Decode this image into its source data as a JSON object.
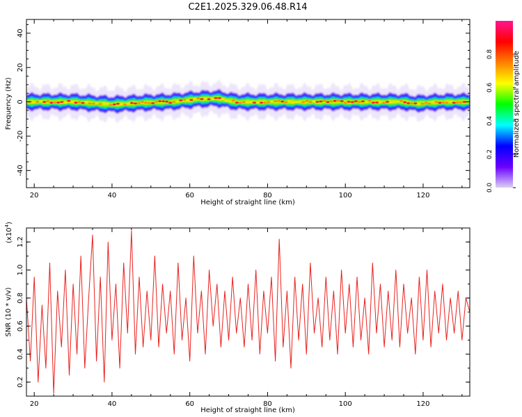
{
  "title": "C2E1.2025.329.06.48.R14",
  "chart_data": [
    {
      "type": "heatmap",
      "xlabel": "Height of straight line (km)",
      "ylabel": "Frequency (Hz)",
      "xlim": [
        18,
        132
      ],
      "ylim": [
        -50,
        48
      ],
      "xticks": [
        20,
        40,
        60,
        80,
        100,
        120
      ],
      "yticks": [
        -40,
        -20,
        0,
        20,
        40
      ],
      "band": {
        "center_hz": [
          [
            18,
            0
          ],
          [
            30,
            0
          ],
          [
            40,
            -1.5
          ],
          [
            48,
            -0.5
          ],
          [
            55,
            0
          ],
          [
            62,
            1.5
          ],
          [
            67,
            2
          ],
          [
            72,
            0
          ],
          [
            85,
            0
          ],
          [
            100,
            0
          ],
          [
            115,
            0
          ],
          [
            118,
            -1
          ],
          [
            125,
            0
          ],
          [
            132,
            0
          ]
        ],
        "core_halfwidth_hz": 1.2,
        "full_halfwidth_hz": 4,
        "scatter_halfwidth_hz": 9
      },
      "colorbar": {
        "label": "Normalized spectral amplitude",
        "range": [
          0,
          1
        ],
        "ticks": [
          "0.0",
          "0.2",
          "0.4",
          "0.6",
          "0.8"
        ],
        "colormap": [
          "#dcd0f5",
          "#6a00ff",
          "#0000ff",
          "#00ffff",
          "#00ff00",
          "#ffff00",
          "#ff8000",
          "#ff0000",
          "#ff1493"
        ]
      }
    },
    {
      "type": "line",
      "xlabel": "Height of straight line (km)",
      "ylabel": "SNR (10 * v/v)",
      "multiplier_label": "(x10",
      "multiplier_exp": "4",
      "xlim": [
        18,
        132
      ],
      "ylim": [
        0.1,
        1.3
      ],
      "xticks": [
        20,
        40,
        60,
        80,
        100,
        120
      ],
      "yticks": [
        "0.2",
        "0.4",
        "0.6",
        "0.8",
        "1.0",
        "1.2"
      ],
      "series": [
        {
          "color": "#e8201c",
          "x": [
            18,
            19,
            20,
            21,
            22,
            23,
            24,
            25,
            26,
            27,
            28,
            29,
            30,
            31,
            32,
            33,
            34,
            35,
            36,
            37,
            38,
            39,
            40,
            41,
            42,
            43,
            44,
            45,
            46,
            47,
            48,
            49,
            50,
            51,
            52,
            53,
            54,
            55,
            56,
            57,
            58,
            59,
            60,
            61,
            62,
            63,
            64,
            65,
            66,
            67,
            68,
            69,
            70,
            71,
            72,
            73,
            74,
            75,
            76,
            77,
            78,
            79,
            80,
            81,
            82,
            83,
            84,
            85,
            86,
            87,
            88,
            89,
            90,
            91,
            92,
            93,
            94,
            95,
            96,
            97,
            98,
            99,
            100,
            101,
            102,
            103,
            104,
            105,
            106,
            107,
            108,
            109,
            110,
            111,
            112,
            113,
            114,
            115,
            116,
            117,
            118,
            119,
            120,
            121,
            122,
            123,
            124,
            125,
            126,
            127,
            128,
            129,
            130,
            131,
            132
          ],
          "y": [
            0.8,
            0.35,
            0.95,
            0.2,
            0.75,
            0.3,
            1.05,
            0.12,
            0.85,
            0.45,
            1.0,
            0.25,
            0.9,
            0.4,
            1.1,
            0.3,
            0.8,
            1.25,
            0.35,
            0.95,
            0.2,
            1.2,
            0.5,
            0.9,
            0.3,
            1.05,
            0.55,
            1.28,
            0.4,
            0.95,
            0.45,
            0.85,
            0.5,
            1.1,
            0.45,
            0.9,
            0.55,
            0.85,
            0.4,
            1.05,
            0.5,
            0.8,
            0.35,
            1.1,
            0.55,
            0.85,
            0.4,
            1.0,
            0.6,
            0.9,
            0.45,
            0.85,
            0.5,
            0.95,
            0.55,
            0.8,
            0.45,
            0.9,
            0.5,
            1.0,
            0.4,
            0.85,
            0.55,
            0.95,
            0.35,
            1.22,
            0.45,
            0.85,
            0.3,
            0.95,
            0.5,
            0.9,
            0.4,
            1.05,
            0.55,
            0.8,
            0.45,
            0.95,
            0.5,
            0.85,
            0.4,
            1.0,
            0.55,
            0.9,
            0.45,
            0.95,
            0.5,
            0.8,
            0.4,
            1.05,
            0.55,
            0.9,
            0.45,
            0.85,
            0.5,
            1.0,
            0.45,
            0.9,
            0.55,
            0.8,
            0.4,
            0.95,
            0.5,
            1.0,
            0.45,
            0.85,
            0.55,
            0.9,
            0.5,
            0.8,
            0.55,
            0.85,
            0.5,
            0.8,
            0.7
          ]
        }
      ]
    }
  ]
}
